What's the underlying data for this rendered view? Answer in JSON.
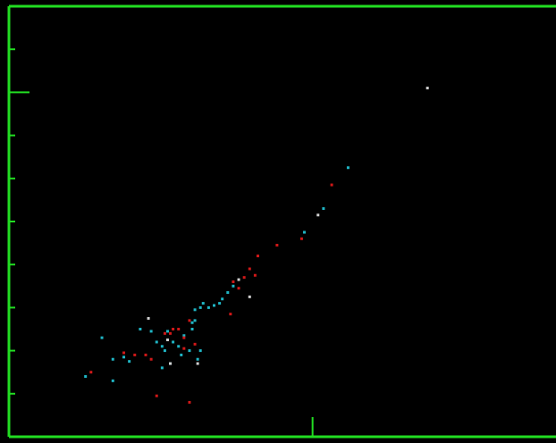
{
  "chart_data": {
    "type": "scatter",
    "title": "",
    "xlabel": "",
    "ylabel": "",
    "xlim": [
      0,
      100
    ],
    "ylim": [
      0,
      100
    ],
    "grid": false,
    "axis_color": "#22dd22",
    "series": [
      {
        "color": "#1fb5c4",
        "points": [
          [
            14,
            14
          ],
          [
            17,
            23
          ],
          [
            19,
            18
          ],
          [
            19,
            13
          ],
          [
            21,
            18.5
          ],
          [
            22,
            17.5
          ],
          [
            24,
            25
          ],
          [
            26,
            24.5
          ],
          [
            27,
            22
          ],
          [
            28,
            21
          ],
          [
            28,
            16
          ],
          [
            28.5,
            20
          ],
          [
            29,
            24.5
          ],
          [
            29.5,
            17
          ],
          [
            30,
            22
          ],
          [
            31,
            21
          ],
          [
            31.5,
            19
          ],
          [
            32,
            23.5
          ],
          [
            33,
            20
          ],
          [
            33.5,
            26.5
          ],
          [
            33.5,
            25
          ],
          [
            34,
            27
          ],
          [
            34,
            29.5
          ],
          [
            34.5,
            18
          ],
          [
            35,
            30
          ],
          [
            35,
            20
          ],
          [
            35.5,
            31
          ],
          [
            36.5,
            30
          ],
          [
            37.5,
            30.5
          ],
          [
            38.5,
            31
          ],
          [
            39,
            32
          ],
          [
            40,
            33.5
          ],
          [
            41,
            35
          ],
          [
            54,
            47.5
          ],
          [
            57.5,
            53
          ],
          [
            62,
            62.5
          ]
        ]
      },
      {
        "color": "#d01818",
        "points": [
          [
            15,
            15
          ],
          [
            21,
            19.5
          ],
          [
            23,
            19
          ],
          [
            25,
            19
          ],
          [
            26,
            18
          ],
          [
            27,
            9.5
          ],
          [
            28.5,
            24
          ],
          [
            29.5,
            24
          ],
          [
            30,
            25
          ],
          [
            31,
            25
          ],
          [
            32,
            23
          ],
          [
            32,
            20.5
          ],
          [
            33,
            27
          ],
          [
            33,
            8
          ],
          [
            34,
            21.5
          ],
          [
            40.5,
            28.5
          ],
          [
            41,
            36
          ],
          [
            42,
            34.5
          ],
          [
            43,
            37
          ],
          [
            44,
            39
          ],
          [
            45,
            37.5
          ],
          [
            45.5,
            42
          ],
          [
            49,
            44.5
          ],
          [
            53.5,
            46
          ],
          [
            59,
            58.5
          ]
        ]
      },
      {
        "color": "#d0d0d0",
        "points": [
          [
            25.5,
            27.5
          ],
          [
            29,
            22.5
          ],
          [
            29.5,
            17
          ],
          [
            34.5,
            17
          ],
          [
            42,
            36.5
          ],
          [
            44,
            32.5
          ],
          [
            56.5,
            51.5
          ],
          [
            76.5,
            81
          ]
        ]
      }
    ]
  }
}
